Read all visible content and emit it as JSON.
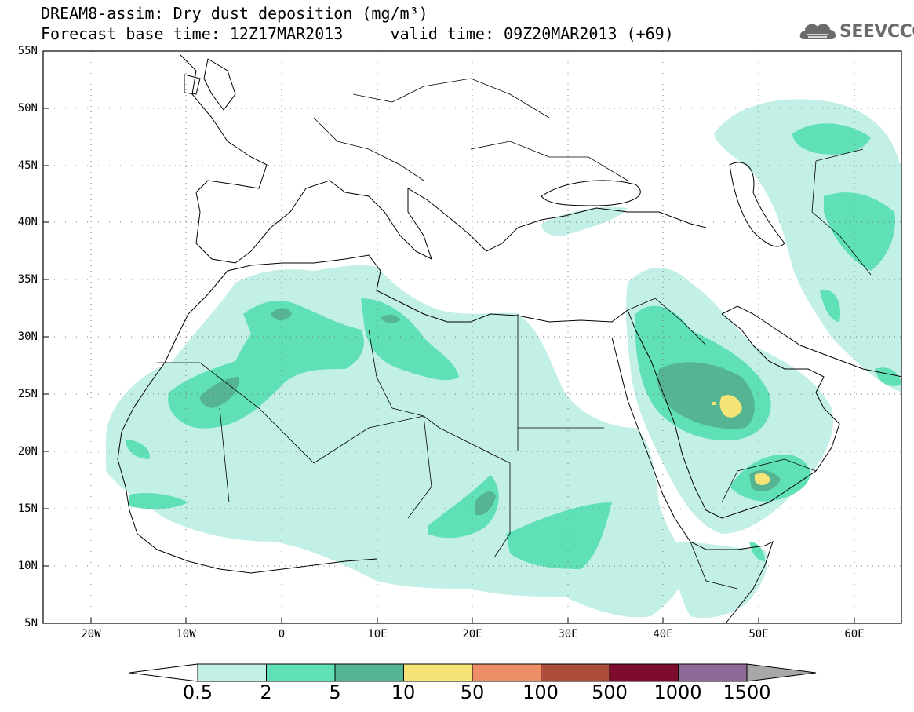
{
  "title": {
    "line1": "DREAM8-assim: Dry dust deposition (mg/m³)",
    "base_time": "Forecast base time: 12Z17MAR2013",
    "valid_time": "valid time: 09Z20MAR2013 (+69)"
  },
  "logo": {
    "text": "SEEVCCC",
    "icon": "cloud-logo-icon"
  },
  "map": {
    "lat_labels": [
      "55N",
      "50N",
      "45N",
      "40N",
      "35N",
      "30N",
      "25N",
      "20N",
      "15N",
      "10N",
      "5N"
    ],
    "lon_labels": [
      "20W",
      "10W",
      "0",
      "10E",
      "20E",
      "30E",
      "40E",
      "50E",
      "60E"
    ],
    "lat_range": [
      5,
      55
    ],
    "lon_range": [
      -25,
      65
    ],
    "gridlines": "dotted"
  },
  "legend": {
    "labels": [
      "0.5",
      "2",
      "5",
      "10",
      "50",
      "100",
      "500",
      "1000",
      "1500"
    ],
    "colors": [
      "#c3f0e6",
      "#5fe0b6",
      "#55b593",
      "#f5e577",
      "#ec8e66",
      "#ad4e3c",
      "#7e0c2e",
      "#8e6a99"
    ],
    "under_color": "#ffffff",
    "over_color": "#a8a8a8"
  }
}
